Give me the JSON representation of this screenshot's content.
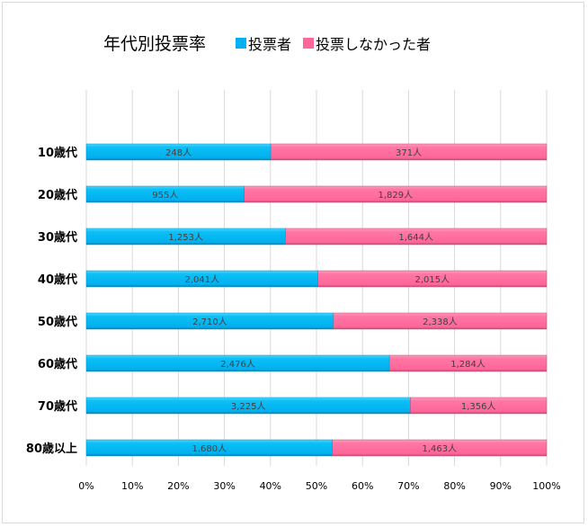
{
  "chart_data": {
    "type": "bar",
    "orientation": "horizontal",
    "stacked": "percent",
    "title": "年代別投票率",
    "categories": [
      "10歳代",
      "20歳代",
      "30歳代",
      "40歳代",
      "50歳代",
      "60歳代",
      "70歳代",
      "80歳以上"
    ],
    "series": [
      {
        "name": "投票者",
        "color": "#00B0F0",
        "values": [
          248,
          955,
          1253,
          2041,
          2710,
          2476,
          3225,
          1680
        ],
        "labels": [
          "248人",
          "955人",
          "1,253人",
          "2,041人",
          "2,710人",
          "2,476人",
          "3,225人",
          "1,680人"
        ]
      },
      {
        "name": "投票しなかった者",
        "color": "#FF6699",
        "values": [
          371,
          1829,
          1644,
          2015,
          2338,
          1284,
          1356,
          1463
        ],
        "labels": [
          "371人",
          "1,829人",
          "1,644人",
          "2,015人",
          "2,338人",
          "1,284人",
          "1,356人",
          "1,463人"
        ]
      }
    ],
    "xticks": [
      "0%",
      "10%",
      "20%",
      "30%",
      "40%",
      "50%",
      "60%",
      "70%",
      "80%",
      "90%",
      "100%"
    ],
    "xlim": [
      0,
      100
    ],
    "grid": true,
    "legend": "top"
  }
}
